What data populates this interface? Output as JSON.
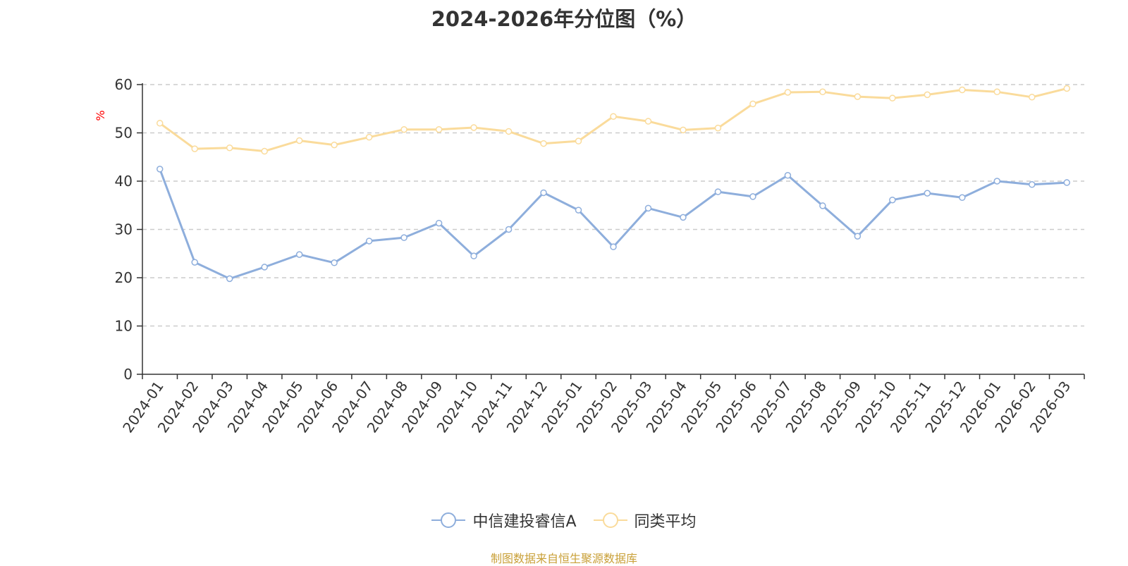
{
  "chart_data": {
    "type": "line",
    "title": "2024-2026年分位图（%）",
    "ylabel": "%",
    "xlabel": "",
    "ylim": [
      0,
      60
    ],
    "yticks": [
      0,
      10,
      20,
      30,
      40,
      50,
      60
    ],
    "grid": true,
    "legend_position": "bottom-center",
    "categories": [
      "2024-01",
      "2024-02",
      "2024-03",
      "2024-04",
      "2024-05",
      "2024-06",
      "2024-07",
      "2024-08",
      "2024-09",
      "2024-10",
      "2024-11",
      "2024-12",
      "2025-01",
      "2025-02",
      "2025-03",
      "2025-04",
      "2025-05",
      "2025-06",
      "2025-07",
      "2025-08",
      "2025-09",
      "2025-10",
      "2025-11",
      "2025-12",
      "2026-01",
      "2026-02",
      "2026-03"
    ],
    "series": [
      {
        "name": "中信建投睿信A",
        "color": "#8eaedc",
        "values": [
          42.5,
          23.2,
          19.8,
          22.2,
          24.8,
          23.1,
          27.6,
          28.3,
          31.3,
          24.5,
          30.0,
          37.6,
          34.0,
          26.4,
          34.4,
          32.5,
          37.8,
          36.8,
          41.2,
          34.9,
          28.6,
          36.1,
          37.5,
          36.6,
          40.0,
          39.3,
          39.7
        ]
      },
      {
        "name": "同类平均",
        "color": "#fadb9b",
        "values": [
          52.0,
          46.7,
          46.9,
          46.2,
          48.4,
          47.5,
          49.1,
          50.7,
          50.7,
          51.1,
          50.3,
          47.8,
          48.3,
          53.4,
          52.4,
          50.6,
          51.0,
          56.0,
          58.4,
          58.5,
          57.5,
          57.2,
          57.9,
          58.9,
          58.5,
          57.4,
          59.2
        ]
      }
    ]
  },
  "footer": {
    "source": "制图数据来自恒生聚源数据库"
  }
}
